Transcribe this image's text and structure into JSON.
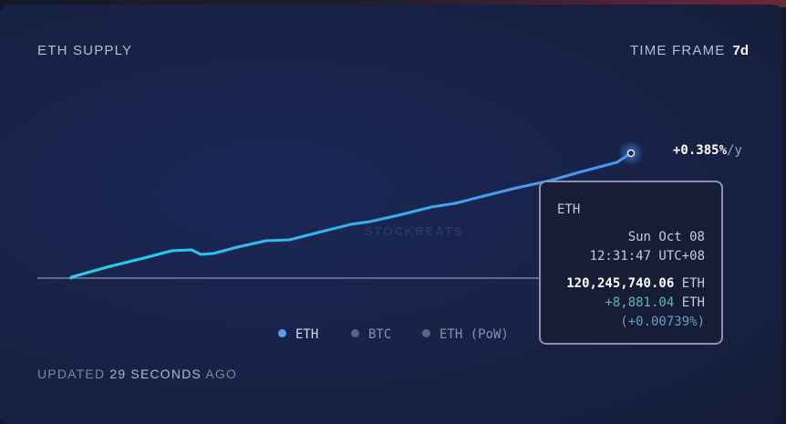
{
  "header": {
    "title": "ETH SUPPLY",
    "time_frame_label": "TIME FRAME",
    "time_frame_value": "7d"
  },
  "rate": {
    "value": "+0.385%",
    "unit": "/y"
  },
  "watermark": "STOCKBEATS",
  "tooltip": {
    "series": "ETH",
    "date": "Sun Oct 08",
    "time": "12:31:47 UTC+08",
    "supply": "120,245,740.06",
    "supply_unit": "ETH",
    "change": "+8,881.04",
    "change_unit": "ETH",
    "change_pct": "(+0.00739%)"
  },
  "legend": [
    {
      "label": "ETH",
      "color": "#5b9cf0",
      "active": true
    },
    {
      "label": "BTC",
      "color": "#5d6480",
      "active": false
    },
    {
      "label": "ETH (PoW)",
      "color": "#5d6480",
      "active": false
    }
  ],
  "footer": {
    "prefix": "UPDATED",
    "count": "29 SECONDS",
    "suffix": "AGO"
  },
  "chart_data": {
    "type": "line",
    "title": "ETH SUPPLY",
    "xlabel": "",
    "ylabel": "",
    "series": [
      {
        "name": "ETH",
        "color_start": "#22d3ee",
        "color_end": "#4f8ef0",
        "values_eth_change": [
          0,
          65,
          842,
          1425,
          1944,
          2009,
          1685,
          1750,
          2203,
          2657,
          2722,
          3240,
          3823,
          4018,
          4471,
          5054,
          5314,
          5832,
          6415,
          6934,
          7517,
          8230,
          8881
        ]
      }
    ],
    "x_positions_relative": [
      0,
      0,
      0.07,
      0.13,
      0.18,
      0.215,
      0.232,
      0.254,
      0.297,
      0.348,
      0.39,
      0.441,
      0.5,
      0.534,
      0.585,
      0.644,
      0.686,
      0.737,
      0.796,
      0.856,
      0.907,
      0.975,
      1
    ],
    "baseline": 0,
    "grid": false,
    "legend_position": "bottom"
  }
}
